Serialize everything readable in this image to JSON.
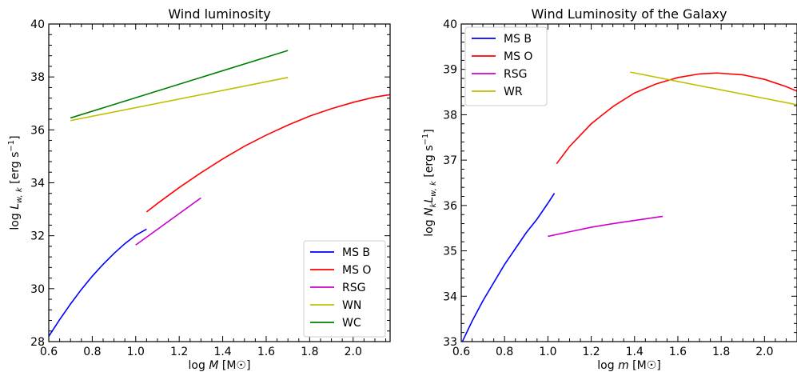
{
  "chart_data": [
    {
      "type": "line",
      "title": "Wind luminosity",
      "xlabel_pre": "log ",
      "xlabel_var": "M",
      "xlabel_post": " [M☉]",
      "ylabel_pre": "log ",
      "ylabel_var": "L",
      "ylabel_sub": "w, k",
      "ylabel_post": " [erg s",
      "ylabel_sup": "−1",
      "ylabel_end": "]",
      "xlim": [
        0.6,
        2.17
      ],
      "ylim": [
        28,
        40
      ],
      "xticks": [
        0.6,
        0.8,
        1.0,
        1.2,
        1.4,
        1.6,
        1.8,
        2.0
      ],
      "xtick_labels": [
        "0.6",
        "0.8",
        "1.0",
        "1.2",
        "1.4",
        "1.6",
        "1.8",
        "2.0"
      ],
      "yticks": [
        28,
        30,
        32,
        34,
        36,
        38,
        40
      ],
      "ytick_labels": [
        "28",
        "30",
        "32",
        "34",
        "36",
        "38",
        "40"
      ],
      "legend_position": "lower-right",
      "series": [
        {
          "name": "MS B",
          "color": "#0000ff",
          "x": [
            0.6,
            0.65,
            0.7,
            0.75,
            0.8,
            0.85,
            0.9,
            0.95,
            1.0,
            1.05
          ],
          "y": [
            28.2,
            28.83,
            29.42,
            29.97,
            30.47,
            30.92,
            31.33,
            31.7,
            32.02,
            32.25
          ]
        },
        {
          "name": "MS O",
          "color": "#ff0000",
          "x": [
            1.05,
            1.1,
            1.2,
            1.3,
            1.4,
            1.5,
            1.6,
            1.7,
            1.8,
            1.9,
            2.0,
            2.1,
            2.17
          ],
          "y": [
            32.9,
            33.22,
            33.82,
            34.38,
            34.9,
            35.38,
            35.8,
            36.18,
            36.52,
            36.8,
            37.04,
            37.24,
            37.33
          ]
        },
        {
          "name": "RSG",
          "color": "#cc00cc",
          "x": [
            1.0,
            1.3
          ],
          "y": [
            31.65,
            33.43
          ]
        },
        {
          "name": "WN",
          "color": "#bfbf00",
          "x": [
            0.7,
            1.7
          ],
          "y": [
            36.35,
            37.98
          ]
        },
        {
          "name": "WC",
          "color": "#008000",
          "x": [
            0.7,
            1.7
          ],
          "y": [
            36.45,
            39.0
          ]
        }
      ]
    },
    {
      "type": "line",
      "title": "Wind Luminosity of the Galaxy",
      "xlabel_pre": "log ",
      "xlabel_var": "m",
      "xlabel_post": " [M☉]",
      "ylabel_pre": "log ",
      "ylabel_var": "N",
      "ylabel_sub1": "k",
      "ylabel_var2": "L",
      "ylabel_sub": "w, k",
      "ylabel_post": " [erg s",
      "ylabel_sup": "−1",
      "ylabel_end": "]",
      "xlim": [
        0.6,
        2.15
      ],
      "ylim": [
        33,
        40
      ],
      "xticks": [
        0.6,
        0.8,
        1.0,
        1.2,
        1.4,
        1.6,
        1.8,
        2.0
      ],
      "xtick_labels": [
        "0.6",
        "0.8",
        "1.0",
        "1.2",
        "1.4",
        "1.6",
        "1.8",
        "2.0"
      ],
      "yticks": [
        33,
        34,
        35,
        36,
        37,
        38,
        39,
        40
      ],
      "ytick_labels": [
        "33",
        "34",
        "35",
        "36",
        "37",
        "38",
        "39",
        "40"
      ],
      "legend_position": "top-left",
      "series": [
        {
          "name": "MS B",
          "color": "#0000ff",
          "x": [
            0.6,
            0.65,
            0.7,
            0.75,
            0.8,
            0.85,
            0.9,
            0.95,
            1.0,
            1.03
          ],
          "y": [
            32.95,
            33.45,
            33.9,
            34.3,
            34.7,
            35.05,
            35.4,
            35.7,
            36.05,
            36.27
          ]
        },
        {
          "name": "MS O",
          "color": "#ff0000",
          "x": [
            1.04,
            1.1,
            1.2,
            1.3,
            1.4,
            1.5,
            1.6,
            1.7,
            1.78,
            1.9,
            2.0,
            2.1,
            2.15
          ],
          "y": [
            36.92,
            37.3,
            37.8,
            38.18,
            38.48,
            38.68,
            38.82,
            38.9,
            38.92,
            38.88,
            38.78,
            38.62,
            38.52
          ]
        },
        {
          "name": "RSG",
          "color": "#cc00cc",
          "x": [
            1.0,
            1.1,
            1.2,
            1.3,
            1.4,
            1.53
          ],
          "y": [
            35.32,
            35.42,
            35.52,
            35.6,
            35.67,
            35.76
          ]
        },
        {
          "name": "WR",
          "color": "#bfbf00",
          "x": [
            1.38,
            2.15
          ],
          "y": [
            38.94,
            38.22
          ]
        }
      ]
    }
  ]
}
